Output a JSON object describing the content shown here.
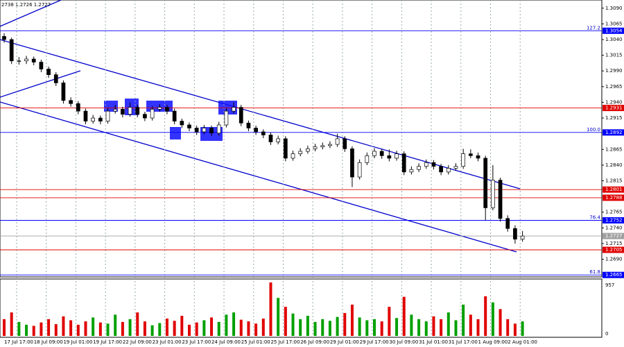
{
  "chart_data": {
    "type": "candlestick",
    "header": "2738 1.2726 1.2727",
    "categories": [
      "17 Jul 17:00",
      null,
      null,
      null,
      "18 Jul 09:00",
      null,
      null,
      null,
      "19 Jul 01:00",
      null,
      null,
      null,
      "19 Jul 17:00",
      null,
      null,
      null,
      "22 Jul 09:00",
      null,
      null,
      null,
      "23 Jul 01:00",
      null,
      null,
      null,
      "23 Jul 17:00",
      null,
      null,
      null,
      "24 Jul 09:00",
      null,
      null,
      null,
      "25 Jul 01:00",
      null,
      null,
      null,
      "25 Jul 17:00",
      null,
      null,
      null,
      "26 Jul 09:00",
      null,
      null,
      null,
      "29 Jul 01:00",
      null,
      null,
      null,
      "29 Jul 17:00",
      null,
      null,
      null,
      "30 Jul 09:00",
      null,
      null,
      null,
      "31 Jul 01:00",
      null,
      null,
      null,
      "31 Jul 17:00",
      null,
      null,
      null,
      "1 Aug 09:00",
      null,
      null,
      null,
      "2 Aug 01:00",
      null,
      null
    ],
    "open": [
      1.3045,
      1.304,
      1.3006,
      1.3006,
      1.3009,
      1.3004,
      1.2993,
      1.2984,
      1.2971,
      1.2943,
      1.2938,
      1.2926,
      1.291,
      1.2915,
      1.291,
      1.2926,
      1.2929,
      1.2921,
      1.2932,
      1.2921,
      1.2915,
      1.2929,
      1.2932,
      1.2926,
      1.291,
      1.2904,
      1.2899,
      1.2893,
      1.2899,
      1.2891,
      1.2904,
      1.2926,
      1.2932,
      1.2907,
      1.2899,
      1.2893,
      1.2888,
      1.2877,
      1.2882,
      1.2851,
      1.2858,
      1.2862,
      1.2866,
      1.2869,
      1.2871,
      1.2873,
      1.2882,
      1.2866,
      1.2821,
      1.2844,
      1.2855,
      1.2862,
      1.2855,
      1.2851,
      1.2858,
      1.2829,
      1.2833,
      1.2838,
      1.2844,
      1.2838,
      1.2829,
      1.2835,
      1.2838,
      1.2858,
      1.2855,
      1.2851,
      1.2772,
      1.2816,
      1.2755,
      1.2739,
      1.2722
    ],
    "high": [
      1.305,
      1.3043,
      1.3012,
      1.3014,
      1.3013,
      1.3008,
      1.2997,
      1.2988,
      1.2975,
      1.2948,
      1.2942,
      1.293,
      1.292,
      1.2919,
      1.2931,
      1.2936,
      1.2933,
      1.294,
      1.2936,
      1.2925,
      1.2934,
      1.2937,
      1.2936,
      1.293,
      1.2914,
      1.2908,
      1.2903,
      1.2904,
      1.2903,
      1.2909,
      1.2931,
      1.294,
      1.2936,
      1.2911,
      1.2903,
      1.2897,
      1.2892,
      1.2887,
      1.2886,
      1.2863,
      1.2867,
      1.2871,
      1.2874,
      1.2876,
      1.2878,
      1.289,
      1.2886,
      1.287,
      1.2849,
      1.286,
      1.2867,
      1.2866,
      1.2865,
      1.2863,
      1.2862,
      1.2838,
      1.2843,
      1.2849,
      1.2848,
      1.2842,
      1.284,
      1.2843,
      1.2866,
      1.2865,
      1.286,
      1.2855,
      1.284,
      1.282,
      1.276,
      1.2744,
      1.2735
    ],
    "low": [
      1.3035,
      1.3001,
      1.3,
      1.3001,
      1.2999,
      1.2988,
      1.2979,
      1.2966,
      1.2938,
      1.2933,
      1.2921,
      1.2905,
      1.2906,
      1.2905,
      1.2906,
      1.2922,
      1.2916,
      1.2917,
      1.2916,
      1.291,
      1.2911,
      1.2925,
      1.2921,
      1.2905,
      1.2899,
      1.2894,
      1.2888,
      1.2889,
      1.2886,
      1.2887,
      1.29,
      1.2922,
      1.2902,
      1.2894,
      1.2888,
      1.2883,
      1.2872,
      1.2873,
      1.2846,
      1.2847,
      1.2854,
      1.2858,
      1.2862,
      1.2865,
      1.2867,
      1.2869,
      1.2861,
      1.2805,
      1.2817,
      1.284,
      1.2851,
      1.285,
      1.2846,
      1.2847,
      1.2824,
      1.2825,
      1.2829,
      1.2834,
      1.2833,
      1.2824,
      1.2825,
      1.2831,
      1.2834,
      1.2851,
      1.2846,
      1.2752,
      1.2768,
      1.275,
      1.2734,
      1.2715,
      1.2718
    ],
    "close": [
      1.304,
      1.3006,
      1.3006,
      1.3009,
      1.3004,
      1.2993,
      1.2984,
      1.2971,
      1.2943,
      1.2938,
      1.2926,
      1.291,
      1.2915,
      1.291,
      1.2926,
      1.2929,
      1.2921,
      1.2932,
      1.2921,
      1.2915,
      1.2929,
      1.2932,
      1.2926,
      1.291,
      1.2904,
      1.2899,
      1.2893,
      1.2899,
      1.2891,
      1.2904,
      1.2926,
      1.2932,
      1.2907,
      1.2899,
      1.2893,
      1.2888,
      1.2877,
      1.2882,
      1.2851,
      1.2858,
      1.2862,
      1.2866,
      1.2869,
      1.2871,
      1.2873,
      1.2882,
      1.2866,
      1.2821,
      1.2844,
      1.2855,
      1.2862,
      1.2855,
      1.2851,
      1.2858,
      1.2829,
      1.2833,
      1.2838,
      1.2844,
      1.2838,
      1.2829,
      1.2835,
      1.2838,
      1.2858,
      1.2855,
      1.2851,
      1.2772,
      1.2816,
      1.2755,
      1.2739,
      1.2722,
      1.2727
    ],
    "volume": [
      300,
      420,
      250,
      200,
      180,
      240,
      300,
      210,
      350,
      280,
      200,
      260,
      330,
      240,
      220,
      380,
      250,
      300,
      420,
      260,
      190,
      230,
      310,
      270,
      360,
      200,
      240,
      280,
      330,
      250,
      380,
      420,
      290,
      260,
      220,
      310,
      957,
      680,
      520,
      400,
      300,
      360,
      250,
      300,
      270,
      340,
      410,
      560,
      330,
      280,
      300,
      260,
      520,
      320,
      700,
      380,
      300,
      260,
      350,
      300,
      420,
      280,
      560,
      380,
      300,
      710,
      600,
      480,
      300,
      220,
      260
    ],
    "up_color": "#00a000",
    "down_color": "#e00000",
    "ylim": [
      1.2663,
      1.3103
    ],
    "yticks": [
      {
        "value": 1.309,
        "label": "1.3090"
      },
      {
        "value": 1.3065,
        "label": "1.3065"
      },
      {
        "value": 1.304,
        "label": "1.3040"
      },
      {
        "value": 1.3015,
        "label": "1.3015"
      },
      {
        "value": 1.299,
        "label": "1.2990"
      },
      {
        "value": 1.2965,
        "label": "1.2965"
      },
      {
        "value": 1.294,
        "label": "1.2940"
      },
      {
        "value": 1.2915,
        "label": "1.2915"
      },
      {
        "value": 1.2865,
        "label": "1.2865"
      },
      {
        "value": 1.284,
        "label": "1.2840"
      },
      {
        "value": 1.2815,
        "label": "1.2815"
      },
      {
        "value": 1.2765,
        "label": "1.2765"
      },
      {
        "value": 1.274,
        "label": "1.2740"
      },
      {
        "value": 1.2715,
        "label": "1.2715"
      },
      {
        "value": 1.269,
        "label": "1.2690"
      }
    ],
    "volume_ylim": [
      0,
      957
    ],
    "volume_yticks": [
      0,
      957
    ],
    "levels": [
      {
        "value": 1.3054,
        "label": "1.3054",
        "color": "#0000ff",
        "fib": "127.2"
      },
      {
        "value": 1.2931,
        "label": "1.2931",
        "color": "#e00000"
      },
      {
        "value": 1.2892,
        "label": "1.2892",
        "color": "#0000ff",
        "fib": "100.0"
      },
      {
        "value": 1.2801,
        "label": "1.2801",
        "color": "#e00000"
      },
      {
        "value": 1.2788,
        "label": "1.2788",
        "color": "#e00000"
      },
      {
        "value": 1.2752,
        "label": "1.2752",
        "color": "#0000ff",
        "fib": "76.4"
      },
      {
        "value": 1.2727,
        "label": "1.2727",
        "color": "#a0a0a0"
      },
      {
        "value": 1.2705,
        "label": "1.2705",
        "color": "#e00000"
      },
      {
        "value": 1.2665,
        "label": "1.2665",
        "color": "#0000ff",
        "fib": "61.8"
      }
    ],
    "grid": true
  }
}
